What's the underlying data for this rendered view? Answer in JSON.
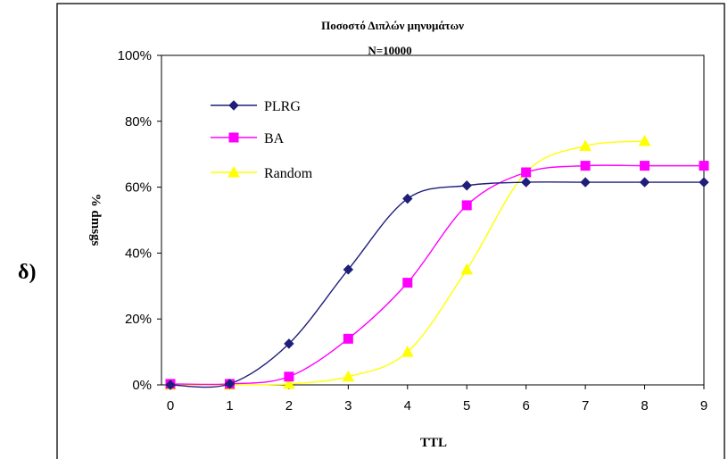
{
  "panel_label": "δ)",
  "chart_data": {
    "type": "line",
    "title": "Ποσοστό Διπλών μηνυμάτων",
    "subtitle": "N=10000",
    "xlabel": "TTL",
    "ylabel": "% dmsgs",
    "x": [
      0,
      1,
      2,
      3,
      4,
      5,
      6,
      7,
      8,
      9
    ],
    "xlim": [
      0,
      9
    ],
    "ylim": [
      0,
      100
    ],
    "y_tick_labels": [
      "0%",
      "20%",
      "40%",
      "60%",
      "80%",
      "100%"
    ],
    "y_ticks": [
      0,
      20,
      40,
      60,
      80,
      100
    ],
    "x_tick_labels": [
      "0",
      "1",
      "2",
      "3",
      "4",
      "5",
      "6",
      "7",
      "8",
      "9"
    ],
    "grid": false,
    "legend": "top-left",
    "series": [
      {
        "name": "PLRG",
        "color": "#1f1f7a",
        "marker": "diamond",
        "x": [
          0,
          1,
          2,
          3,
          4,
          5,
          6,
          7,
          8,
          9
        ],
        "values": [
          0,
          0.3,
          12.5,
          35,
          56.5,
          60.5,
          61.5,
          61.5,
          61.5,
          61.5
        ]
      },
      {
        "name": "BA",
        "color": "#ff00ff",
        "marker": "square",
        "x": [
          0,
          1,
          2,
          3,
          4,
          5,
          6,
          7,
          8,
          9
        ],
        "values": [
          0.3,
          0.3,
          2.5,
          14,
          31,
          54.5,
          64.5,
          66.5,
          66.5,
          66.5
        ]
      },
      {
        "name": "Random",
        "color": "#ffff00",
        "marker": "triangle",
        "x": [
          0,
          1,
          2,
          3,
          4,
          5,
          6,
          7,
          8
        ],
        "values": [
          0,
          0,
          0.3,
          2.5,
          10,
          35,
          64.5,
          72.5,
          74
        ]
      }
    ]
  }
}
